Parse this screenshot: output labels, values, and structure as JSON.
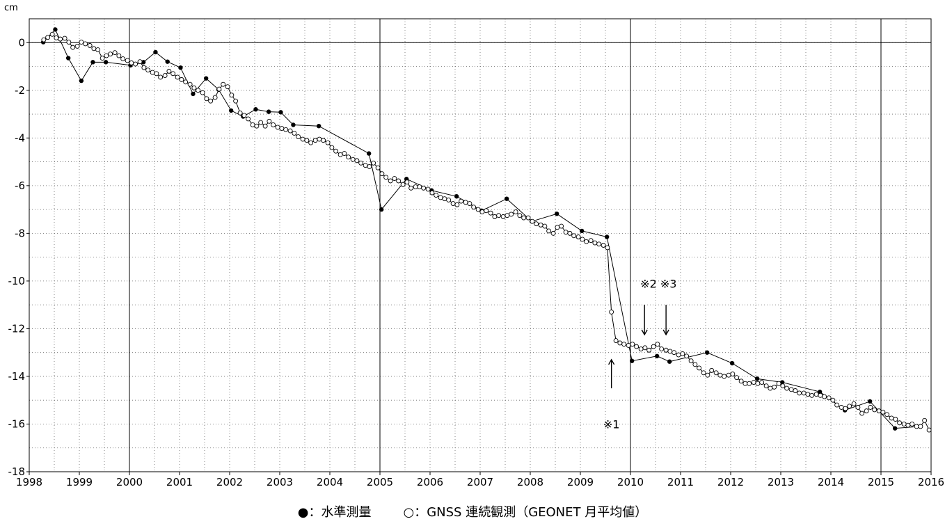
{
  "chart_data": {
    "type": "scatter",
    "unit_label": "cm",
    "xlim": [
      1998,
      2016
    ],
    "ylim": [
      -18,
      1
    ],
    "x_ticks": [
      1998,
      1999,
      2000,
      2001,
      2002,
      2003,
      2004,
      2005,
      2006,
      2007,
      2008,
      2009,
      2010,
      2011,
      2012,
      2013,
      2014,
      2015,
      2016
    ],
    "y_ticks": [
      0,
      -2,
      -4,
      -6,
      -8,
      -10,
      -12,
      -14,
      -16,
      -18
    ],
    "vertical_reference_lines": [
      2000,
      2005,
      2010,
      2015
    ],
    "horizontal_reference_line": 0,
    "grid": "dotted",
    "series": [
      {
        "name": "水準測量",
        "marker": "filled-circle",
        "points": [
          [
            1998.28,
            0.02
          ],
          [
            1998.52,
            0.55
          ],
          [
            1998.78,
            -0.65
          ],
          [
            1999.04,
            -1.6
          ],
          [
            1999.27,
            -0.82
          ],
          [
            1999.53,
            -0.82
          ],
          [
            2000.02,
            -0.95
          ],
          [
            2000.28,
            -0.82
          ],
          [
            2000.52,
            -0.4
          ],
          [
            2000.76,
            -0.8
          ],
          [
            2001.02,
            -1.05
          ],
          [
            2001.27,
            -2.15
          ],
          [
            2001.53,
            -1.5
          ],
          [
            2001.78,
            -1.97
          ],
          [
            2002.03,
            -2.85
          ],
          [
            2002.27,
            -3.1
          ],
          [
            2002.52,
            -2.8
          ],
          [
            2002.78,
            -2.9
          ],
          [
            2003.02,
            -2.92
          ],
          [
            2003.27,
            -3.45
          ],
          [
            2003.78,
            -3.5
          ],
          [
            2004.78,
            -4.65
          ],
          [
            2005.03,
            -7.0
          ],
          [
            2005.53,
            -5.72
          ],
          [
            2006.03,
            -6.2
          ],
          [
            2006.53,
            -6.45
          ],
          [
            2007.03,
            -7.05
          ],
          [
            2007.53,
            -6.55
          ],
          [
            2008.03,
            -7.5
          ],
          [
            2008.53,
            -7.18
          ],
          [
            2009.03,
            -7.9
          ],
          [
            2009.53,
            -8.15
          ],
          [
            2010.03,
            -13.35
          ],
          [
            2010.53,
            -13.15
          ],
          [
            2010.78,
            -13.38
          ],
          [
            2011.53,
            -13.0
          ],
          [
            2012.03,
            -13.45
          ],
          [
            2012.53,
            -14.1
          ],
          [
            2013.03,
            -14.25
          ],
          [
            2013.78,
            -14.65
          ],
          [
            2014.28,
            -15.42
          ],
          [
            2014.78,
            -15.05
          ],
          [
            2015.28,
            -16.18
          ],
          [
            2015.78,
            -16.1
          ]
        ]
      },
      {
        "name": "GNSS 連続観測（GEONET 月平均値）",
        "marker": "open-circle",
        "points": [
          [
            1998.29,
            0.12
          ],
          [
            1998.37,
            0.22
          ],
          [
            1998.46,
            0.35
          ],
          [
            1998.54,
            0.2
          ],
          [
            1998.62,
            0.15
          ],
          [
            1998.71,
            0.18
          ],
          [
            1998.79,
            0.02
          ],
          [
            1998.87,
            -0.2
          ],
          [
            1998.96,
            -0.15
          ],
          [
            1999.04,
            0.02
          ],
          [
            1999.12,
            -0.05
          ],
          [
            1999.21,
            -0.12
          ],
          [
            1999.29,
            -0.25
          ],
          [
            1999.37,
            -0.3
          ],
          [
            1999.46,
            -0.65
          ],
          [
            1999.54,
            -0.55
          ],
          [
            1999.62,
            -0.48
          ],
          [
            1999.71,
            -0.42
          ],
          [
            1999.79,
            -0.55
          ],
          [
            1999.87,
            -0.68
          ],
          [
            1999.96,
            -0.75
          ],
          [
            2000.04,
            -0.85
          ],
          [
            2000.12,
            -0.9
          ],
          [
            2000.21,
            -0.8
          ],
          [
            2000.29,
            -1.05
          ],
          [
            2000.37,
            -1.15
          ],
          [
            2000.46,
            -1.25
          ],
          [
            2000.54,
            -1.3
          ],
          [
            2000.62,
            -1.45
          ],
          [
            2000.71,
            -1.38
          ],
          [
            2000.79,
            -1.2
          ],
          [
            2000.87,
            -1.3
          ],
          [
            2000.96,
            -1.45
          ],
          [
            2001.04,
            -1.55
          ],
          [
            2001.12,
            -1.65
          ],
          [
            2001.21,
            -1.75
          ],
          [
            2001.29,
            -1.9
          ],
          [
            2001.37,
            -2.0
          ],
          [
            2001.46,
            -2.1
          ],
          [
            2001.54,
            -2.35
          ],
          [
            2001.62,
            -2.45
          ],
          [
            2001.71,
            -2.3
          ],
          [
            2001.79,
            -1.95
          ],
          [
            2001.87,
            -1.75
          ],
          [
            2001.96,
            -1.85
          ],
          [
            2002.04,
            -2.2
          ],
          [
            2002.12,
            -2.45
          ],
          [
            2002.21,
            -2.95
          ],
          [
            2002.29,
            -3.05
          ],
          [
            2002.37,
            -3.2
          ],
          [
            2002.46,
            -3.45
          ],
          [
            2002.54,
            -3.5
          ],
          [
            2002.62,
            -3.35
          ],
          [
            2002.71,
            -3.5
          ],
          [
            2002.79,
            -3.3
          ],
          [
            2002.87,
            -3.45
          ],
          [
            2002.96,
            -3.55
          ],
          [
            2003.04,
            -3.6
          ],
          [
            2003.12,
            -3.65
          ],
          [
            2003.21,
            -3.7
          ],
          [
            2003.29,
            -3.8
          ],
          [
            2003.37,
            -3.95
          ],
          [
            2003.46,
            -4.05
          ],
          [
            2003.54,
            -4.1
          ],
          [
            2003.62,
            -4.2
          ],
          [
            2003.71,
            -4.1
          ],
          [
            2003.79,
            -4.05
          ],
          [
            2003.87,
            -4.1
          ],
          [
            2003.96,
            -4.2
          ],
          [
            2004.04,
            -4.4
          ],
          [
            2004.12,
            -4.55
          ],
          [
            2004.21,
            -4.7
          ],
          [
            2004.29,
            -4.65
          ],
          [
            2004.37,
            -4.8
          ],
          [
            2004.46,
            -4.9
          ],
          [
            2004.54,
            -4.95
          ],
          [
            2004.62,
            -5.05
          ],
          [
            2004.71,
            -5.15
          ],
          [
            2004.79,
            -5.2
          ],
          [
            2004.87,
            -5.05
          ],
          [
            2004.96,
            -5.25
          ],
          [
            2005.04,
            -5.5
          ],
          [
            2005.12,
            -5.65
          ],
          [
            2005.21,
            -5.8
          ],
          [
            2005.29,
            -5.7
          ],
          [
            2005.37,
            -5.8
          ],
          [
            2005.46,
            -5.95
          ],
          [
            2005.54,
            -5.85
          ],
          [
            2005.62,
            -6.1
          ],
          [
            2005.71,
            -6.05
          ],
          [
            2005.79,
            -6.05
          ],
          [
            2005.87,
            -6.1
          ],
          [
            2005.96,
            -6.15
          ],
          [
            2006.04,
            -6.3
          ],
          [
            2006.12,
            -6.4
          ],
          [
            2006.21,
            -6.5
          ],
          [
            2006.29,
            -6.55
          ],
          [
            2006.37,
            -6.6
          ],
          [
            2006.46,
            -6.75
          ],
          [
            2006.54,
            -6.8
          ],
          [
            2006.62,
            -6.65
          ],
          [
            2006.71,
            -6.7
          ],
          [
            2006.79,
            -6.75
          ],
          [
            2006.87,
            -6.9
          ],
          [
            2006.96,
            -7.0
          ],
          [
            2007.04,
            -7.1
          ],
          [
            2007.12,
            -7.05
          ],
          [
            2007.21,
            -7.15
          ],
          [
            2007.29,
            -7.3
          ],
          [
            2007.37,
            -7.25
          ],
          [
            2007.46,
            -7.3
          ],
          [
            2007.54,
            -7.25
          ],
          [
            2007.62,
            -7.2
          ],
          [
            2007.71,
            -7.1
          ],
          [
            2007.79,
            -7.25
          ],
          [
            2007.87,
            -7.35
          ],
          [
            2007.96,
            -7.35
          ],
          [
            2008.04,
            -7.5
          ],
          [
            2008.12,
            -7.6
          ],
          [
            2008.21,
            -7.65
          ],
          [
            2008.29,
            -7.7
          ],
          [
            2008.37,
            -7.9
          ],
          [
            2008.46,
            -8.0
          ],
          [
            2008.54,
            -7.75
          ],
          [
            2008.62,
            -7.7
          ],
          [
            2008.71,
            -7.95
          ],
          [
            2008.79,
            -8.0
          ],
          [
            2008.87,
            -8.1
          ],
          [
            2008.96,
            -8.15
          ],
          [
            2009.04,
            -8.25
          ],
          [
            2009.12,
            -8.35
          ],
          [
            2009.21,
            -8.3
          ],
          [
            2009.29,
            -8.4
          ],
          [
            2009.37,
            -8.45
          ],
          [
            2009.46,
            -8.5
          ],
          [
            2009.54,
            -8.6
          ],
          [
            2009.62,
            -11.3
          ],
          [
            2009.71,
            -12.5
          ],
          [
            2009.79,
            -12.6
          ],
          [
            2009.87,
            -12.65
          ],
          [
            2009.96,
            -12.7
          ],
          [
            2010.04,
            -12.65
          ],
          [
            2010.12,
            -12.75
          ],
          [
            2010.21,
            -12.85
          ],
          [
            2010.29,
            -12.8
          ],
          [
            2010.37,
            -12.9
          ],
          [
            2010.46,
            -12.75
          ],
          [
            2010.54,
            -12.65
          ],
          [
            2010.62,
            -12.85
          ],
          [
            2010.71,
            -12.9
          ],
          [
            2010.79,
            -12.95
          ],
          [
            2010.87,
            -13.0
          ],
          [
            2010.96,
            -13.1
          ],
          [
            2011.04,
            -13.05
          ],
          [
            2011.12,
            -13.15
          ],
          [
            2011.21,
            -13.35
          ],
          [
            2011.29,
            -13.5
          ],
          [
            2011.37,
            -13.65
          ],
          [
            2011.46,
            -13.85
          ],
          [
            2011.54,
            -13.95
          ],
          [
            2011.62,
            -13.75
          ],
          [
            2011.71,
            -13.85
          ],
          [
            2011.79,
            -13.95
          ],
          [
            2011.87,
            -14.0
          ],
          [
            2011.96,
            -13.95
          ],
          [
            2012.04,
            -13.9
          ],
          [
            2012.12,
            -14.05
          ],
          [
            2012.21,
            -14.2
          ],
          [
            2012.29,
            -14.3
          ],
          [
            2012.37,
            -14.3
          ],
          [
            2012.46,
            -14.25
          ],
          [
            2012.54,
            -14.3
          ],
          [
            2012.62,
            -14.25
          ],
          [
            2012.71,
            -14.4
          ],
          [
            2012.79,
            -14.5
          ],
          [
            2012.87,
            -14.45
          ],
          [
            2012.96,
            -14.3
          ],
          [
            2013.04,
            -14.4
          ],
          [
            2013.12,
            -14.5
          ],
          [
            2013.21,
            -14.55
          ],
          [
            2013.29,
            -14.6
          ],
          [
            2013.37,
            -14.7
          ],
          [
            2013.46,
            -14.7
          ],
          [
            2013.54,
            -14.75
          ],
          [
            2013.62,
            -14.8
          ],
          [
            2013.71,
            -14.75
          ],
          [
            2013.79,
            -14.8
          ],
          [
            2013.87,
            -14.85
          ],
          [
            2013.96,
            -14.9
          ],
          [
            2014.04,
            -15.0
          ],
          [
            2014.12,
            -15.2
          ],
          [
            2014.21,
            -15.3
          ],
          [
            2014.29,
            -15.35
          ],
          [
            2014.37,
            -15.25
          ],
          [
            2014.46,
            -15.15
          ],
          [
            2014.54,
            -15.3
          ],
          [
            2014.62,
            -15.55
          ],
          [
            2014.71,
            -15.45
          ],
          [
            2014.79,
            -15.3
          ],
          [
            2014.87,
            -15.4
          ],
          [
            2014.96,
            -15.45
          ],
          [
            2015.04,
            -15.5
          ],
          [
            2015.12,
            -15.6
          ],
          [
            2015.21,
            -15.75
          ],
          [
            2015.29,
            -15.8
          ],
          [
            2015.37,
            -15.95
          ],
          [
            2015.46,
            -16.0
          ],
          [
            2015.54,
            -16.05
          ],
          [
            2015.62,
            -16.0
          ],
          [
            2015.71,
            -16.1
          ],
          [
            2015.79,
            -16.1
          ],
          [
            2015.87,
            -15.85
          ],
          [
            2015.96,
            -16.25
          ]
        ]
      }
    ],
    "annotations": [
      {
        "text": "※1",
        "x": 2009.62,
        "y": -16.0,
        "arrow": "up",
        "arrow_from": -14.5,
        "arrow_to": -13.3
      },
      {
        "text": "※2 ※3",
        "x": 2010.56,
        "y": -10.1
      },
      {
        "arrow": "down",
        "x": 2010.28,
        "arrow_from": -11.0,
        "arrow_to": -12.25
      },
      {
        "arrow": "down",
        "x": 2010.71,
        "arrow_from": -11.0,
        "arrow_to": -12.25
      }
    ]
  },
  "legend": {
    "filled_marker": "●",
    "filled_text": "：水準測量",
    "open_marker": "○",
    "open_text": "：GNSS 連続観測（GEONET 月平均値）"
  }
}
